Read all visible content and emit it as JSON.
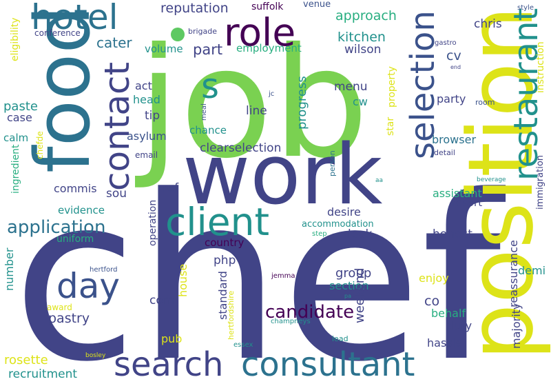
{
  "palette": {
    "purple": "#440154",
    "indigo": "#3b528b",
    "navy": "#414487",
    "teal": "#21918c",
    "blue": "#2c728e",
    "green": "#5ec962",
    "lime": "#7ad151",
    "yellow": "#dde318",
    "aqua": "#28ae80"
  },
  "words": [
    {
      "text": "chef",
      "color": "navy"
    },
    {
      "text": "job",
      "color": "lime"
    },
    {
      "text": "work",
      "color": "navy"
    },
    {
      "text": "position",
      "color": "yellow"
    },
    {
      "text": "food",
      "color": "blue"
    },
    {
      "text": "search",
      "color": "navy"
    },
    {
      "text": "consultant",
      "color": "blue"
    },
    {
      "text": "client",
      "color": "teal"
    },
    {
      "text": "selection",
      "color": "indigo"
    },
    {
      "text": "restaurant",
      "color": "teal"
    },
    {
      "text": "hotel",
      "color": "blue"
    },
    {
      "text": "role",
      "color": "purple"
    },
    {
      "text": "contact",
      "color": "navy"
    },
    {
      "text": "day",
      "color": "indigo"
    },
    {
      "text": "application",
      "color": "blue"
    },
    {
      "text": "s",
      "color": "teal"
    },
    {
      "text": "candidate",
      "color": "purple"
    },
    {
      "text": "reputation",
      "color": "navy"
    },
    {
      "text": "suffolk",
      "color": "purple"
    },
    {
      "text": "venue",
      "color": "indigo"
    },
    {
      "text": "approach",
      "color": "aqua"
    },
    {
      "text": "kitchen",
      "color": "teal"
    },
    {
      "text": "part",
      "color": "navy"
    },
    {
      "text": "cater",
      "color": "blue"
    },
    {
      "text": "employment",
      "color": "aqua"
    },
    {
      "text": "volume",
      "color": "teal"
    },
    {
      "text": "wilson",
      "color": "navy"
    },
    {
      "text": "cv",
      "color": "indigo"
    },
    {
      "text": "menu",
      "color": "navy"
    },
    {
      "text": "cw",
      "color": "teal"
    },
    {
      "text": "chris",
      "color": "navy"
    },
    {
      "text": "instruction",
      "color": "yellow"
    },
    {
      "text": "party",
      "color": "navy"
    },
    {
      "text": "room",
      "color": "indigo"
    },
    {
      "text": "progress",
      "color": "teal"
    },
    {
      "text": "line",
      "color": "navy"
    },
    {
      "text": "clearselection",
      "color": "navy"
    },
    {
      "text": "browser",
      "color": "blue"
    },
    {
      "text": "detail",
      "color": "navy"
    },
    {
      "text": "immigration",
      "color": "navy"
    },
    {
      "text": "eligibility",
      "color": "yellow"
    },
    {
      "text": "conference",
      "color": "navy"
    },
    {
      "text": "act",
      "color": "navy"
    },
    {
      "text": "head",
      "color": "teal"
    },
    {
      "text": "tip",
      "color": "navy"
    },
    {
      "text": "paste",
      "color": "teal"
    },
    {
      "text": "case",
      "color": "navy"
    },
    {
      "text": "calm",
      "color": "teal"
    },
    {
      "text": "asylum",
      "color": "indigo"
    },
    {
      "text": "chance",
      "color": "teal"
    },
    {
      "text": "email",
      "color": "navy"
    },
    {
      "text": "ref",
      "color": "navy"
    },
    {
      "text": "commis",
      "color": "navy"
    },
    {
      "text": "sou",
      "color": "navy"
    },
    {
      "text": "evidence",
      "color": "teal"
    },
    {
      "text": "uniform",
      "color": "aqua"
    },
    {
      "text": "ingredient",
      "color": "aqua"
    },
    {
      "text": "chefde",
      "color": "yellow"
    },
    {
      "text": "assistant",
      "color": "aqua"
    },
    {
      "text": "resort",
      "color": "navy"
    },
    {
      "text": "desire",
      "color": "navy"
    },
    {
      "text": "accommodation",
      "color": "teal"
    },
    {
      "text": "look",
      "color": "navy"
    },
    {
      "text": "honest",
      "color": "navy"
    },
    {
      "text": "country",
      "color": "purple"
    },
    {
      "text": "php",
      "color": "navy"
    },
    {
      "text": "group",
      "color": "navy"
    },
    {
      "text": "section",
      "color": "teal"
    },
    {
      "text": "enjoy",
      "color": "yellow"
    },
    {
      "text": "demi",
      "color": "teal"
    },
    {
      "text": "reassurance",
      "color": "navy"
    },
    {
      "text": "majority",
      "color": "navy"
    },
    {
      "text": "com",
      "color": "navy"
    },
    {
      "text": "pastry",
      "color": "navy"
    },
    {
      "text": "co",
      "color": "navy"
    },
    {
      "text": "behalf",
      "color": "aqua"
    },
    {
      "text": "duty",
      "color": "navy"
    },
    {
      "text": "weekend",
      "color": "navy"
    },
    {
      "text": "standard",
      "color": "navy"
    },
    {
      "text": "house",
      "color": "yellow"
    },
    {
      "text": "pub",
      "color": "yellow"
    },
    {
      "text": "hassle",
      "color": "navy"
    },
    {
      "text": "number",
      "color": "teal"
    },
    {
      "text": "rosette",
      "color": "yellow"
    },
    {
      "text": "recruitment",
      "color": "teal"
    },
    {
      "text": "award",
      "color": "yellow"
    },
    {
      "text": "hertford",
      "color": "indigo"
    },
    {
      "text": "hertfordshire",
      "color": "yellow"
    },
    {
      "text": "essex",
      "color": "teal"
    },
    {
      "text": "champneys",
      "color": "teal"
    },
    {
      "text": "jemma",
      "color": "purple"
    },
    {
      "text": "pa",
      "color": "teal"
    },
    {
      "text": "lead",
      "color": "teal"
    },
    {
      "text": "bosley",
      "color": "yellow"
    },
    {
      "text": "brigade",
      "color": "navy"
    },
    {
      "text": "gastro",
      "color": "navy"
    },
    {
      "text": "end",
      "color": "navy"
    },
    {
      "text": "style",
      "color": "indigo"
    },
    {
      "text": "star",
      "color": "yellow"
    },
    {
      "text": "property",
      "color": "yellow"
    },
    {
      "text": "meal",
      "color": "indigo"
    },
    {
      "text": "jc",
      "color": "indigo"
    },
    {
      "text": "person",
      "color": "blue"
    },
    {
      "text": "aa",
      "color": "teal"
    },
    {
      "text": "beverage",
      "color": "teal"
    },
    {
      "text": "step",
      "color": "aqua"
    },
    {
      "text": "operation",
      "color": "navy"
    },
    {
      "text": "dot",
      "color": "green"
    }
  ]
}
